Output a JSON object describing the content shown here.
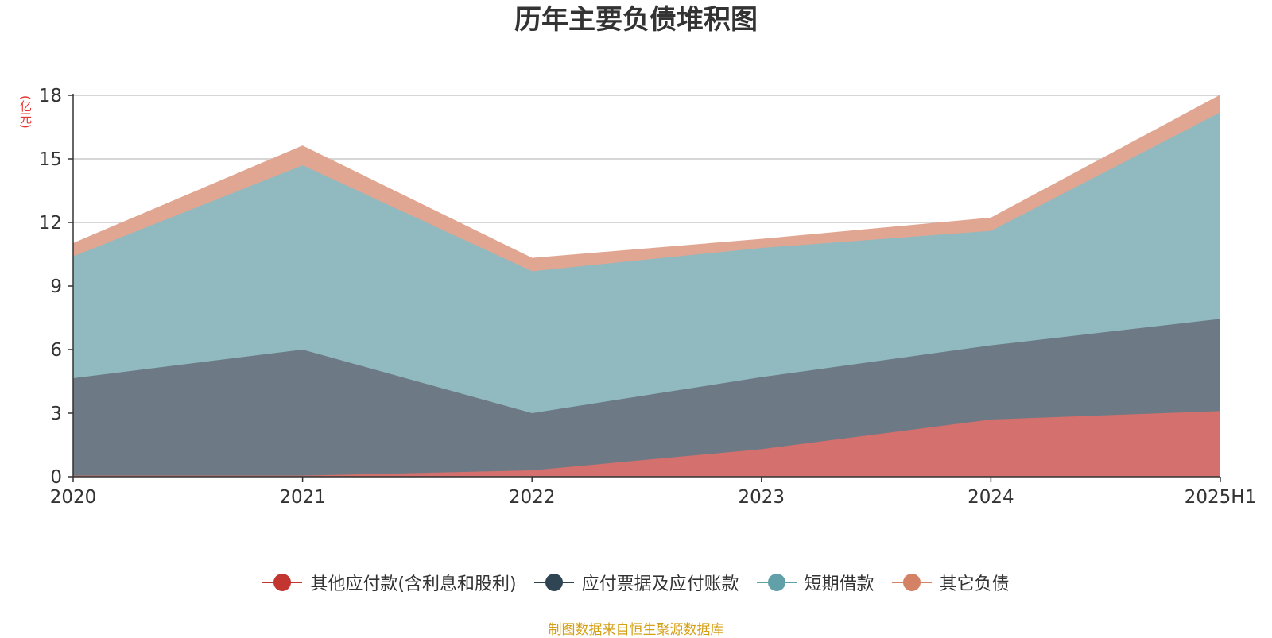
{
  "chart_data": {
    "type": "area",
    "stacked": true,
    "title": "历年主要负债堆积图",
    "unit": "(亿元)",
    "categories": [
      "2020",
      "2021",
      "2022",
      "2023",
      "2024",
      "2025H1"
    ],
    "ylim": [
      0,
      18
    ],
    "yticks": [
      0,
      3,
      6,
      9,
      12,
      15,
      18
    ],
    "grid": true,
    "legend_position": "bottom",
    "series": [
      {
        "name": "其他应付款(含利息和股利)",
        "color": "#c23531",
        "fill": "#d4706d",
        "values": [
          0.05,
          0.05,
          0.3,
          1.3,
          2.7,
          3.1
        ]
      },
      {
        "name": "应付票据及应付账款",
        "color": "#2f4554",
        "fill": "#6d7a85",
        "values": [
          4.6,
          5.95,
          2.7,
          3.4,
          3.5,
          4.35
        ]
      },
      {
        "name": "短期借款",
        "color": "#61a0a8",
        "fill": "#90bac0",
        "values": [
          5.75,
          8.7,
          6.7,
          6.1,
          5.4,
          9.75
        ]
      },
      {
        "name": "其它负债",
        "color": "#d48265",
        "fill": "#e1a691",
        "values": [
          0.6,
          0.9,
          0.6,
          0.4,
          0.6,
          0.8
        ]
      }
    ]
  },
  "source_note": "制图数据来自恒生聚源数据库"
}
